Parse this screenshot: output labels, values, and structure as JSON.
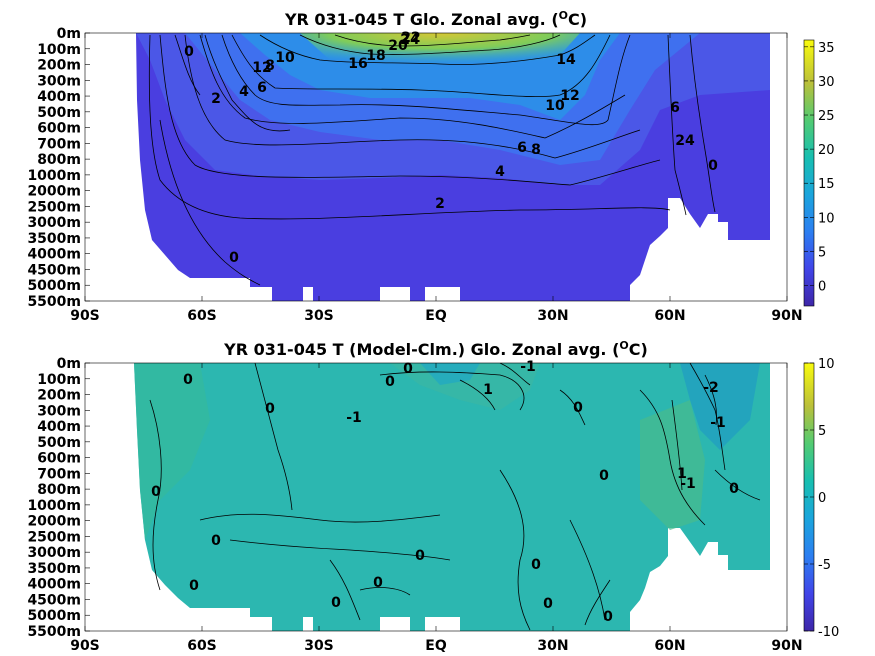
{
  "chart_data": [
    {
      "type": "heatmap",
      "title_main": "YR 031-045 T Glo. Zonal avg. (",
      "title_sup": "O",
      "title_tail": "C)",
      "x_ticks": [
        "90S",
        "60S",
        "30S",
        "EQ",
        "30N",
        "60N",
        "90N"
      ],
      "y_ticks": [
        "0m",
        "100m",
        "200m",
        "300m",
        "400m",
        "500m",
        "600m",
        "700m",
        "800m",
        "1000m",
        "2000m",
        "2500m",
        "3000m",
        "3500m",
        "4000m",
        "4500m",
        "5000m",
        "5500m"
      ],
      "colorbar": {
        "min": -3,
        "max": 36,
        "ticks": [
          "35",
          "30",
          "25",
          "20",
          "15",
          "10",
          "5",
          "0"
        ],
        "tick_values": [
          35,
          30,
          25,
          20,
          15,
          10,
          5,
          0
        ]
      },
      "contour_labels": [
        "0",
        "2",
        "4",
        "6",
        "8",
        "10",
        "12",
        "14",
        "16",
        "18",
        "20",
        "22",
        "24",
        "6",
        "24",
        "0",
        "0",
        "2",
        "4",
        "6",
        "8",
        "10",
        "12"
      ]
    },
    {
      "type": "heatmap",
      "title_main": "YR 031-045 T (Model-Clm.) Glo. Zonal avg. (",
      "title_sup": "O",
      "title_tail": "C)",
      "x_ticks": [
        "90S",
        "60S",
        "30S",
        "EQ",
        "30N",
        "60N",
        "90N"
      ],
      "y_ticks": [
        "0m",
        "100m",
        "200m",
        "300m",
        "400m",
        "500m",
        "600m",
        "700m",
        "800m",
        "1000m",
        "2000m",
        "2500m",
        "3000m",
        "3500m",
        "4000m",
        "4500m",
        "5000m",
        "5500m"
      ],
      "colorbar": {
        "min": -10,
        "max": 10,
        "ticks": [
          "10",
          "5",
          "0",
          "-5",
          "-10"
        ],
        "tick_values": [
          10,
          5,
          0,
          -5,
          -10
        ]
      },
      "contour_labels": [
        "0",
        "0",
        "0",
        "-1",
        "0",
        "1",
        "-1",
        "0",
        "-1",
        "-2",
        "0",
        "0",
        "0",
        "0",
        "0",
        "0",
        "0",
        "0",
        "0",
        "0",
        "0",
        "1",
        "-1"
      ]
    }
  ]
}
